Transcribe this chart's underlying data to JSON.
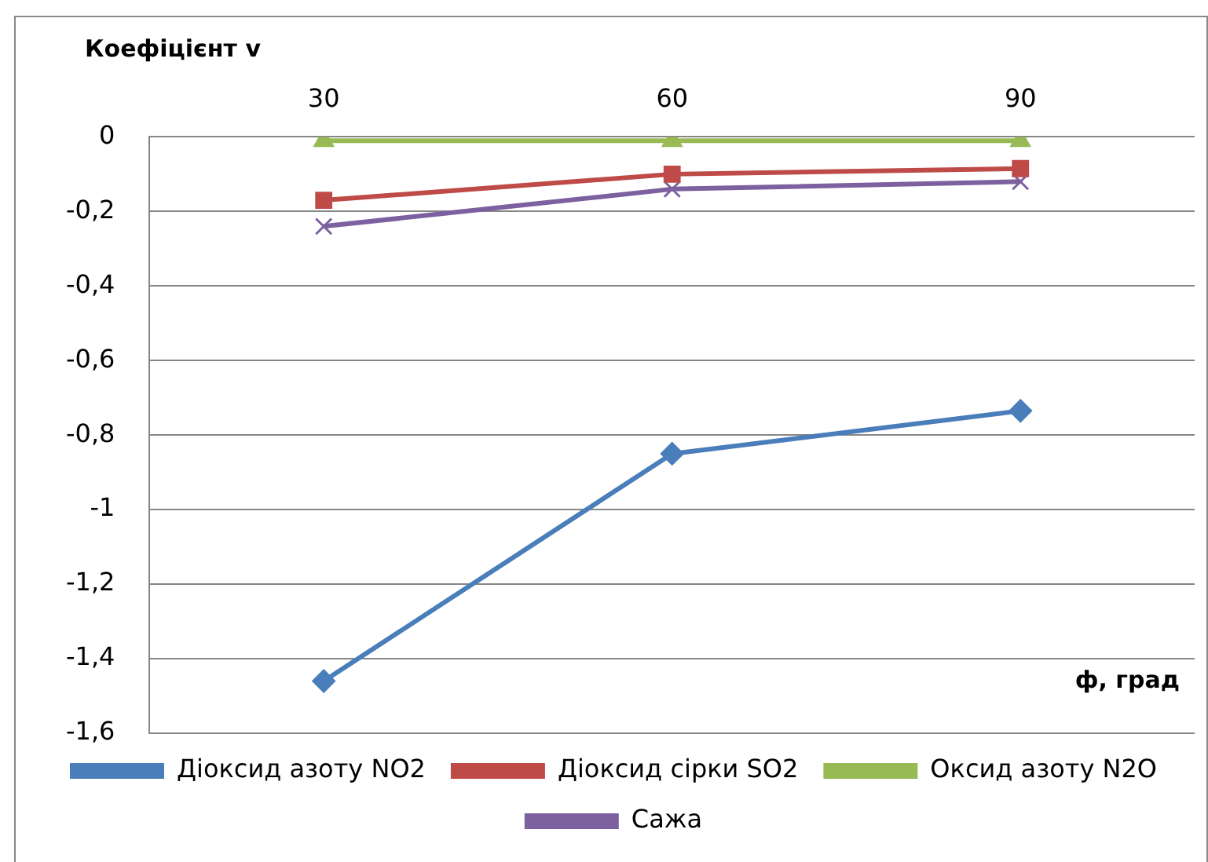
{
  "chart_data": {
    "type": "line",
    "xlabel": "ф, град",
    "ylabel": "Коефіцієнт v",
    "categories": [
      "30",
      "60",
      "90"
    ],
    "series": [
      {
        "name": "Діоксид азоту NO2",
        "color": "#4a7ebb",
        "values": [
          -1.46,
          -0.85,
          -0.735
        ],
        "marker": "diamond"
      },
      {
        "name": "Діоксид сірки SO2",
        "color": "#be4b48",
        "values": [
          -0.17,
          -0.1,
          -0.085
        ],
        "marker": "square"
      },
      {
        "name": "Оксид азоту N2O",
        "color": "#98b954",
        "values": [
          -0.01,
          -0.01,
          -0.01
        ],
        "marker": "triangle"
      },
      {
        "name": "Сажа",
        "color": "#7d60a0",
        "values": [
          -0.24,
          -0.14,
          -0.12
        ],
        "marker": "cross"
      }
    ],
    "ylim": [
      -1.6,
      0
    ],
    "yticks": [
      {
        "value": 0,
        "label": "0"
      },
      {
        "value": -0.2,
        "label": "-0,2"
      },
      {
        "value": -0.4,
        "label": "-0,4"
      },
      {
        "value": -0.6,
        "label": "-0,6"
      },
      {
        "value": -0.8,
        "label": "-0,8"
      },
      {
        "value": -1,
        "label": "-1"
      },
      {
        "value": -1.2,
        "label": "-1,2"
      },
      {
        "value": -1.4,
        "label": "-1,4"
      },
      {
        "value": -1.6,
        "label": "-1,6"
      }
    ],
    "grid": "y",
    "legend": "bottom",
    "line_style": "solid"
  }
}
